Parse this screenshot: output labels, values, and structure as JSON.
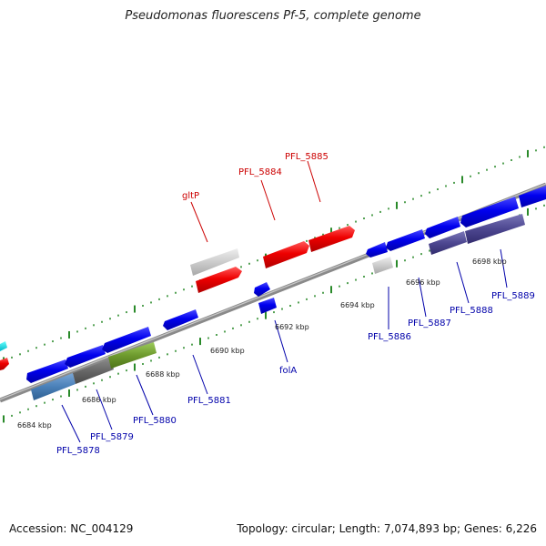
{
  "title": "Pseudomonas fluorescens Pf-5, complete genome",
  "footer": {
    "accession": "Accession: NC_004129",
    "summary": "Topology: circular; Length: 7,074,893 bp; Genes: 6,226"
  },
  "colors": {
    "forward_label": "#cc0000",
    "reverse_label": "#0000aa",
    "backbone": "#888888",
    "tick": "#2a8a2a"
  },
  "scale_labels": [
    "6684 kbp",
    "6686 kbp",
    "6688 kbp",
    "6690 kbp",
    "6692 kbp",
    "6694 kbp",
    "6696 kbp",
    "6698 kbp"
  ],
  "gene_labels": {
    "forward": [
      "gltP",
      "PFL_5884",
      "PFL_5885"
    ],
    "reverse": [
      "PFL_5878",
      "PFL_5879",
      "PFL_5880",
      "PFL_5881",
      "folA",
      "PFL_5886",
      "PFL_5887",
      "PFL_5888",
      "PFL_5889"
    ]
  }
}
